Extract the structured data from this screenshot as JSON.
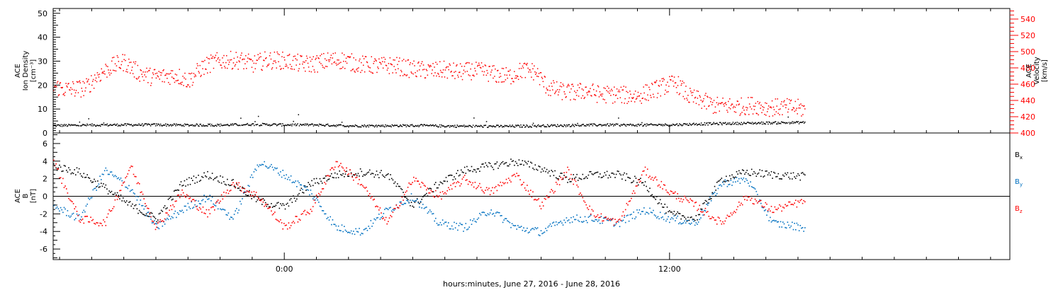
{
  "figure": {
    "x_title": "hours:minutes, June 27, 2016 - June 28, 2016"
  },
  "chart_data": [
    {
      "type": "scatter",
      "panel": "top",
      "left_axis_label": [
        "ACE",
        "Ion Density",
        "[cm⁻³]"
      ],
      "right_axis_label": [
        "ACE",
        "Velocity",
        "[km/s]"
      ],
      "left_ylim": [
        0,
        52
      ],
      "left_ticks": [
        0,
        10,
        20,
        30,
        40,
        50
      ],
      "right_ylim": [
        400,
        553
      ],
      "right_ticks": [
        400,
        420,
        440,
        460,
        480,
        500,
        520,
        540
      ],
      "x_ticks": [
        {
          "hour": 0,
          "label": "0:00"
        },
        {
          "hour": 12,
          "label": "12:00"
        }
      ],
      "xlim_hours": [
        -7.2,
        22.6
      ],
      "grid": false,
      "series": [
        {
          "color": "#000000",
          "axis": "left",
          "x": [
            -7.2,
            -6,
            -5,
            -4,
            -3,
            -2,
            -1,
            0,
            1,
            2,
            3,
            4,
            5,
            6,
            7,
            8,
            9,
            10,
            11,
            12,
            13,
            14,
            15,
            16.2
          ],
          "y": [
            3.3,
            3.5,
            3.6,
            3.6,
            3.5,
            3.5,
            3.8,
            3.6,
            3.6,
            3.2,
            3.2,
            3.3,
            3.1,
            3.0,
            3.0,
            3.2,
            3.4,
            3.6,
            3.5,
            3.6,
            4.0,
            4.2,
            4.4,
            4.6
          ]
        },
        {
          "color": "#ff0000",
          "axis": "right",
          "x": [
            -7.2,
            -6.8,
            -6.2,
            -5.8,
            -5.4,
            -5.0,
            -4.6,
            -4.2,
            -3.8,
            -3.4,
            -3.0,
            -2.6,
            -2.2,
            -1.8,
            -1.4,
            -1.0,
            -0.6,
            -0.2,
            0.2,
            0.6,
            1.0,
            1.4,
            1.8,
            2.2,
            2.6,
            3.0,
            3.4,
            3.8,
            4.2,
            4.6,
            5.0,
            5.4,
            5.8,
            6.2,
            6.6,
            7.0,
            7.4,
            7.8,
            8.2,
            8.6,
            9.0,
            9.4,
            9.8,
            10.2,
            10.6,
            11.0,
            11.4,
            11.8,
            12.2,
            12.6,
            13.0,
            13.4,
            13.8,
            14.2,
            14.6,
            15.0,
            15.4,
            15.8,
            16.2
          ],
          "y": [
            458,
            454,
            456,
            472,
            482,
            488,
            476,
            470,
            470,
            472,
            465,
            480,
            488,
            490,
            490,
            485,
            490,
            490,
            488,
            485,
            486,
            490,
            490,
            486,
            484,
            483,
            484,
            480,
            478,
            477,
            478,
            475,
            477,
            476,
            472,
            470,
            478,
            476,
            456,
            452,
            450,
            453,
            448,
            448,
            447,
            446,
            452,
            458,
            462,
            445,
            440,
            434,
            434,
            433,
            435,
            432,
            432,
            432,
            430
          ]
        }
      ]
    },
    {
      "type": "scatter",
      "panel": "bottom",
      "left_axis_label": [
        "ACE",
        "B",
        "[nT]"
      ],
      "ylim": [
        -7.2,
        7.2
      ],
      "y_ticks": [
        -6,
        -4,
        -2,
        0,
        2,
        4,
        6
      ],
      "legend_position": "right",
      "legend": [
        {
          "base": "B",
          "sub": "x",
          "color": "#000000"
        },
        {
          "base": "B",
          "sub": "y",
          "color": "#0070c0"
        },
        {
          "base": "B",
          "sub": "z",
          "color": "#ff0000"
        }
      ],
      "series": [
        {
          "color": "#000000",
          "x": [
            -7.2,
            -6.4,
            -5.6,
            -4.8,
            -4.0,
            -3.2,
            -2.4,
            -1.6,
            -0.8,
            0.0,
            0.8,
            1.6,
            2.4,
            3.2,
            4.0,
            4.8,
            5.6,
            6.4,
            7.2,
            8.0,
            8.8,
            9.6,
            10.4,
            11.2,
            12.0,
            12.8,
            13.6,
            14.4,
            15.2,
            16.2
          ],
          "y": [
            3.5,
            2.8,
            1.0,
            -1.0,
            -2.5,
            1.5,
            2.5,
            1.5,
            -0.5,
            -1.2,
            1.5,
            2.5,
            2.8,
            2.5,
            -1.0,
            1.5,
            3.0,
            3.5,
            4.0,
            3.2,
            2.0,
            2.5,
            2.5,
            1.5,
            -2.0,
            -2.5,
            2.0,
            2.8,
            2.5,
            2.3
          ]
        },
        {
          "color": "#0070c0",
          "x": [
            -7.2,
            -6.4,
            -5.6,
            -4.8,
            -4.0,
            -3.2,
            -2.4,
            -1.6,
            -0.8,
            0.0,
            0.8,
            1.6,
            2.4,
            3.2,
            4.0,
            4.8,
            5.6,
            6.4,
            7.2,
            8.0,
            8.8,
            9.6,
            10.4,
            11.2,
            12.0,
            12.8,
            13.6,
            14.4,
            15.2,
            16.2
          ],
          "y": [
            -1.0,
            -2.5,
            3.0,
            1.0,
            -3.5,
            -1.5,
            0.0,
            -2.5,
            4.0,
            2.5,
            0.5,
            -3.5,
            -4.0,
            -1.5,
            0.0,
            -3.0,
            -3.5,
            -1.5,
            -3.5,
            -4.0,
            -2.5,
            -2.5,
            -3.0,
            -1.5,
            -2.5,
            -3.0,
            1.5,
            2.0,
            -3.0,
            -3.5
          ]
        },
        {
          "color": "#ff0000",
          "x": [
            -7.2,
            -6.4,
            -5.6,
            -4.8,
            -4.0,
            -3.2,
            -2.4,
            -1.6,
            -0.8,
            0.0,
            0.8,
            1.6,
            2.4,
            3.2,
            4.0,
            4.8,
            5.6,
            6.4,
            7.2,
            8.0,
            8.8,
            9.6,
            10.4,
            11.2,
            12.0,
            12.8,
            13.6,
            14.4,
            15.2,
            16.2
          ],
          "y": [
            4.0,
            -2.5,
            -3.0,
            3.5,
            -3.5,
            0.5,
            -2.0,
            1.5,
            0.0,
            -3.5,
            -1.5,
            4.0,
            1.5,
            -3.0,
            2.0,
            0.0,
            2.0,
            0.5,
            2.5,
            -1.0,
            3.0,
            -2.0,
            -3.0,
            3.0,
            0.5,
            -1.0,
            -3.0,
            0.0,
            -1.5,
            -0.5
          ]
        }
      ]
    }
  ]
}
